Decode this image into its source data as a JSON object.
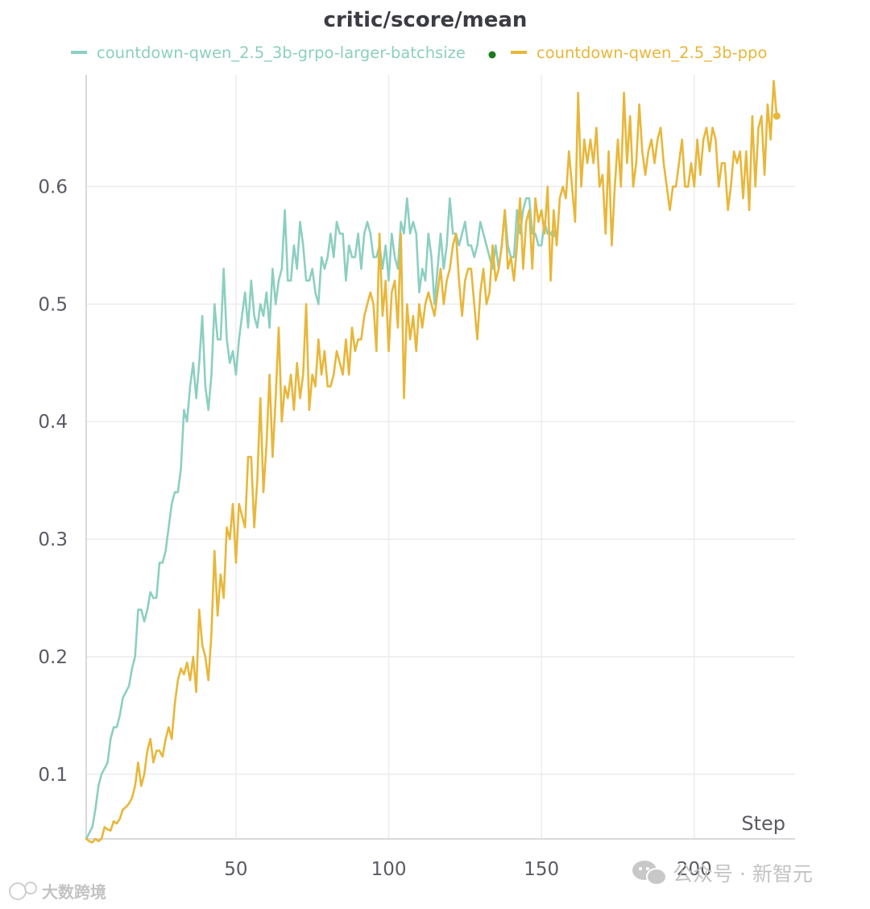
{
  "chart_data": {
    "type": "line",
    "title": "critic/score/mean",
    "xlabel": "Step",
    "ylabel": "",
    "xlim": [
      1,
      233
    ],
    "ylim": [
      0.045,
      0.695
    ],
    "xticks": [
      50,
      100,
      150,
      200
    ],
    "yticks": [
      0.1,
      0.2,
      0.3,
      0.4,
      0.5,
      0.6
    ],
    "ytick_labels": [
      "0.1",
      "0.2",
      "0.3",
      "0.4",
      "0.5",
      "0.6"
    ],
    "grid": true,
    "legend_position": "top",
    "series": [
      {
        "name": "countdown-qwen_2.5_3b-grpo-larger-batchsize",
        "color": "#8ccfc0",
        "x_start": 1,
        "values": [
          0.045,
          0.05,
          0.055,
          0.07,
          0.09,
          0.1,
          0.105,
          0.11,
          0.13,
          0.14,
          0.14,
          0.15,
          0.165,
          0.17,
          0.175,
          0.19,
          0.2,
          0.24,
          0.24,
          0.23,
          0.24,
          0.255,
          0.25,
          0.25,
          0.28,
          0.28,
          0.29,
          0.31,
          0.33,
          0.34,
          0.34,
          0.36,
          0.41,
          0.4,
          0.43,
          0.45,
          0.42,
          0.45,
          0.49,
          0.43,
          0.41,
          0.44,
          0.5,
          0.47,
          0.47,
          0.53,
          0.47,
          0.45,
          0.46,
          0.44,
          0.47,
          0.49,
          0.51,
          0.48,
          0.52,
          0.49,
          0.48,
          0.5,
          0.49,
          0.51,
          0.48,
          0.53,
          0.5,
          0.52,
          0.53,
          0.58,
          0.52,
          0.52,
          0.55,
          0.53,
          0.57,
          0.55,
          0.52,
          0.52,
          0.53,
          0.51,
          0.5,
          0.54,
          0.53,
          0.54,
          0.56,
          0.54,
          0.57,
          0.56,
          0.56,
          0.52,
          0.55,
          0.54,
          0.54,
          0.56,
          0.53,
          0.56,
          0.57,
          0.56,
          0.54,
          0.54,
          0.55,
          0.53,
          0.55,
          0.52,
          0.56,
          0.54,
          0.53,
          0.57,
          0.56,
          0.59,
          0.56,
          0.57,
          0.56,
          0.51,
          0.53,
          0.52,
          0.56,
          0.54,
          0.5,
          0.53,
          0.56,
          0.53,
          0.55,
          0.59,
          0.56,
          0.56,
          0.55,
          0.56,
          0.57,
          0.55,
          0.55,
          0.54,
          0.55,
          0.57,
          0.56,
          0.55,
          0.54,
          0.53,
          0.55,
          0.53,
          0.55,
          0.58,
          0.55,
          0.54,
          0.54,
          0.58,
          0.56,
          0.58,
          0.59,
          0.59,
          0.56,
          0.56,
          0.55,
          0.55,
          0.57,
          0.56,
          0.56,
          0.56
        ]
      },
      {
        "name": "countdown-qwen_2.5_3b-ppo",
        "color": "#e8b73a",
        "x_start": 1,
        "values": [
          0.045,
          0.043,
          0.042,
          0.045,
          0.043,
          0.045,
          0.055,
          0.053,
          0.052,
          0.06,
          0.058,
          0.062,
          0.07,
          0.072,
          0.075,
          0.08,
          0.09,
          0.11,
          0.09,
          0.1,
          0.12,
          0.13,
          0.11,
          0.12,
          0.12,
          0.115,
          0.13,
          0.14,
          0.13,
          0.16,
          0.18,
          0.19,
          0.185,
          0.195,
          0.18,
          0.2,
          0.17,
          0.24,
          0.21,
          0.2,
          0.18,
          0.22,
          0.29,
          0.235,
          0.27,
          0.25,
          0.31,
          0.3,
          0.33,
          0.28,
          0.33,
          0.32,
          0.31,
          0.37,
          0.37,
          0.31,
          0.35,
          0.42,
          0.34,
          0.38,
          0.44,
          0.37,
          0.42,
          0.48,
          0.4,
          0.43,
          0.42,
          0.44,
          0.41,
          0.45,
          0.42,
          0.44,
          0.5,
          0.41,
          0.44,
          0.43,
          0.47,
          0.44,
          0.46,
          0.43,
          0.43,
          0.44,
          0.46,
          0.45,
          0.44,
          0.47,
          0.44,
          0.48,
          0.46,
          0.47,
          0.47,
          0.49,
          0.5,
          0.51,
          0.5,
          0.46,
          0.56,
          0.49,
          0.52,
          0.46,
          0.51,
          0.52,
          0.48,
          0.56,
          0.42,
          0.5,
          0.47,
          0.49,
          0.46,
          0.5,
          0.48,
          0.5,
          0.51,
          0.5,
          0.49,
          0.51,
          0.53,
          0.5,
          0.52,
          0.53,
          0.55,
          0.56,
          0.52,
          0.49,
          0.52,
          0.53,
          0.53,
          0.5,
          0.47,
          0.51,
          0.53,
          0.5,
          0.51,
          0.55,
          0.52,
          0.53,
          0.55,
          0.58,
          0.53,
          0.54,
          0.52,
          0.55,
          0.59,
          0.53,
          0.57,
          0.58,
          0.53,
          0.59,
          0.57,
          0.58,
          0.56,
          0.6,
          0.52,
          0.58,
          0.55,
          0.59,
          0.6,
          0.59,
          0.63,
          0.6,
          0.57,
          0.68,
          0.6,
          0.64,
          0.62,
          0.64,
          0.62,
          0.65,
          0.6,
          0.61,
          0.56,
          0.63,
          0.55,
          0.6,
          0.64,
          0.6,
          0.68,
          0.62,
          0.66,
          0.6,
          0.62,
          0.67,
          0.63,
          0.61,
          0.63,
          0.64,
          0.62,
          0.64,
          0.65,
          0.62,
          0.6,
          0.58,
          0.6,
          0.6,
          0.62,
          0.64,
          0.6,
          0.6,
          0.62,
          0.6,
          0.64,
          0.61,
          0.64,
          0.65,
          0.63,
          0.65,
          0.64,
          0.6,
          0.62,
          0.62,
          0.58,
          0.6,
          0.63,
          0.62,
          0.63,
          0.59,
          0.63,
          0.58,
          0.66,
          0.6,
          0.65,
          0.66,
          0.61,
          0.67,
          0.64,
          0.69,
          0.66
        ]
      }
    ]
  },
  "watermark": {
    "right_text": "公众号 · 新智元",
    "left_text": "大数跨境"
  },
  "colors": {
    "grid": "#ececee",
    "axis": "#d9d9dd",
    "tick_text": "#5a5a66",
    "title": "#3b3b44",
    "legend_marker": "#1a7a1a"
  }
}
